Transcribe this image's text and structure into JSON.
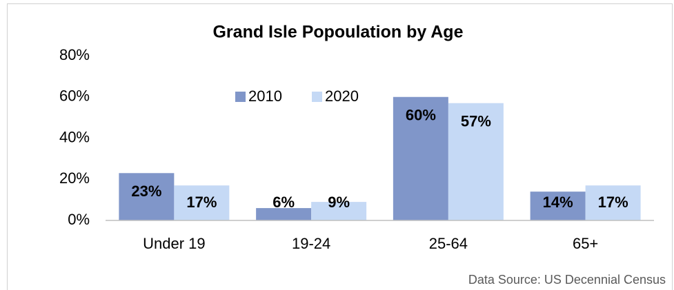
{
  "chart_data": {
    "type": "bar",
    "title": "Grand Isle Popoulation by Age",
    "categories": [
      "Under 19",
      "19-24",
      "25-64",
      "65+"
    ],
    "series": [
      {
        "name": "2010",
        "color": "#8096c9",
        "values": [
          23,
          6,
          60,
          14
        ],
        "value_labels": [
          "23%",
          "6%",
          "60%",
          "14%"
        ]
      },
      {
        "name": "2020",
        "color": "#c5d9f5",
        "values": [
          17,
          9,
          57,
          17
        ],
        "value_labels": [
          "17%",
          "9%",
          "57%",
          "17%"
        ]
      }
    ],
    "ylim": [
      0,
      80
    ],
    "yticks": [
      {
        "value": 0,
        "label": "0%"
      },
      {
        "value": 20,
        "label": "20%"
      },
      {
        "value": 40,
        "label": "40%"
      },
      {
        "value": 60,
        "label": "60%"
      },
      {
        "value": 80,
        "label": "80%"
      }
    ],
    "grid": false,
    "legend": "top",
    "source": "Data Source: US Decennial Census"
  }
}
